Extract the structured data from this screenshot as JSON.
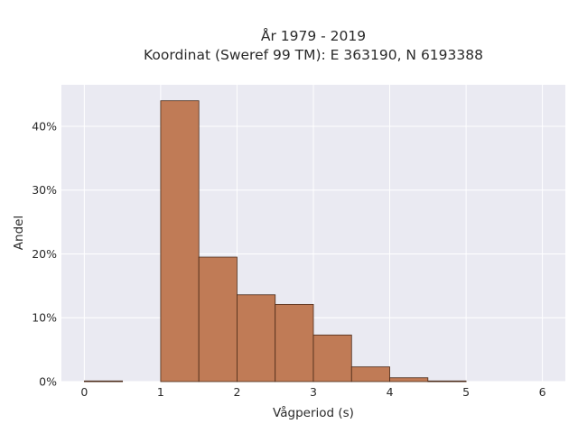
{
  "chart_data": {
    "type": "bar",
    "title": "År 1979 - 2019",
    "subtitle": "Koordinat (Sweref 99 TM): E 363190, N 6193388",
    "xlabel": "Vågperiod (s)",
    "ylabel": "Andel",
    "bin_edges": [
      0,
      0.5,
      1,
      1.5,
      2,
      2.5,
      3,
      3.5,
      4,
      4.5,
      5
    ],
    "values": [
      0.1,
      0,
      44.0,
      19.5,
      13.6,
      12.1,
      7.3,
      2.3,
      0.6,
      0.1
    ],
    "xlim": [
      -0.3,
      6.3
    ],
    "ylim": [
      0,
      46.5
    ],
    "x_ticks": [
      0,
      1,
      2,
      3,
      4,
      5,
      6
    ],
    "y_ticks": [
      0,
      10,
      20,
      30,
      40
    ],
    "y_tick_labels": [
      "0%",
      "10%",
      "20%",
      "30%",
      "40%"
    ],
    "bar_color": "#c07b56",
    "bar_edge_color": "#4a2a18",
    "plot_background": "#eaeaf2",
    "grid": true
  }
}
